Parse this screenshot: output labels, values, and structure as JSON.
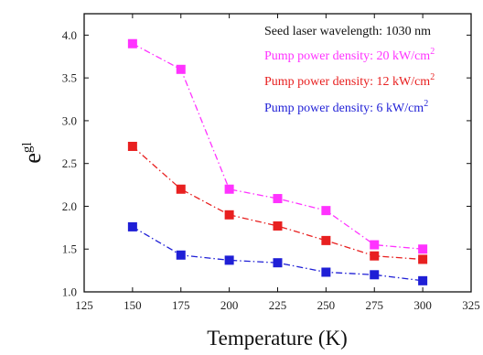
{
  "chart_data": {
    "type": "line",
    "x": [
      150,
      175,
      200,
      225,
      250,
      275,
      300
    ],
    "xlabel": "Temperature (K)",
    "ylabel": "e^gl",
    "ylabel_base": "e",
    "ylabel_sup": "gl",
    "xlim": [
      125,
      325
    ],
    "ylim": [
      1.0,
      4.25
    ],
    "x_ticks": [
      125,
      150,
      175,
      200,
      225,
      250,
      275,
      300,
      325
    ],
    "y_ticks": [
      "1.0",
      "1.5",
      "2.0",
      "2.5",
      "3.0",
      "3.5",
      "4.0"
    ],
    "grid": false,
    "legend_position": "top-right",
    "legend_title": "Seed laser wavelength: 1030 nm",
    "series": [
      {
        "name": "Pump power density: 20 kW/cm2",
        "name_text": "Pump power density: 20 kW/cm",
        "name_sup": "2",
        "color": "#ff33ff",
        "values": [
          3.9,
          3.6,
          2.2,
          2.09,
          1.95,
          1.55,
          1.5
        ]
      },
      {
        "name": "Pump power density: 12 kW/cm2",
        "name_text": "Pump power density: 12 kW/cm",
        "name_sup": "2",
        "color": "#e82020",
        "values": [
          2.7,
          2.2,
          1.9,
          1.77,
          1.6,
          1.42,
          1.38
        ]
      },
      {
        "name": "Pump power density: 6 kW/cm2",
        "name_text": "Pump power density: 6 kW/cm",
        "name_sup": "2",
        "color": "#1f1fd6",
        "values": [
          1.76,
          1.43,
          1.37,
          1.34,
          1.23,
          1.2,
          1.13
        ]
      }
    ]
  }
}
